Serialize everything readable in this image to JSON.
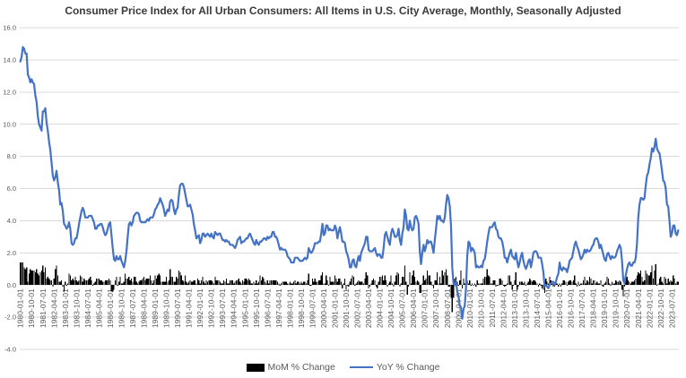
{
  "chart_data": {
    "type": "combo",
    "title": "Consumer Price Index for All Urban Consumers: All Items in U.S. City Average, Monthly, Seasonally Adjusted",
    "x_start": "1980-01",
    "x_end": "2023-12",
    "x_tick_every": 9,
    "x_tick_labels": [
      "1980-01-01",
      "1980-10-01",
      "1981-07-01",
      "1982-04-01",
      "1983-01-01",
      "1983-10-01",
      "1984-07-01",
      "1985-04-01",
      "1986-01-01",
      "1986-10-01",
      "1987-07-01",
      "1988-04-01",
      "1989-01-01",
      "1989-10-01",
      "1990-07-01",
      "1991-04-01",
      "1992-01-01",
      "1992-10-01",
      "1993-07-01",
      "1994-04-01",
      "1995-01-01",
      "1995-10-01",
      "1996-07-01",
      "1997-04-01",
      "1998-01-01",
      "1998-10-01",
      "1999-07-01",
      "2000-04-01",
      "2001-01-01",
      "2001-10-01",
      "2002-07-01",
      "2003-04-01",
      "2004-01-01",
      "2004-10-01",
      "2005-07-01",
      "2006-04-01",
      "2007-01-01",
      "2007-10-01",
      "2008-07-01",
      "2009-04-01",
      "2010-01-01",
      "2010-10-01",
      "2011-07-01",
      "2012-04-01",
      "2013-01-01",
      "2013-10-01",
      "2014-07-01",
      "2015-04-01",
      "2016-01-01",
      "2016-10-01",
      "2017-07-01",
      "2018-04-01",
      "2019-01-01",
      "2019-10-01",
      "2020-07-01",
      "2021-04-01",
      "2022-01-01",
      "2022-10-01",
      "2023-07-01"
    ],
    "y_tick_values": [
      16,
      14,
      12,
      10,
      8,
      6,
      4,
      2,
      0,
      -2,
      -4
    ],
    "y_tick_labels": [
      "16.0",
      "14.0",
      "12.0",
      "10.0",
      "8.0",
      "6.0",
      "4.0",
      "2.0",
      "0.0",
      "-2.0",
      "-4.0"
    ],
    "ylim": [
      -4,
      16
    ],
    "grid": true,
    "legend_position": "bottom",
    "colors": {
      "grid": "#D9D9D9",
      "axis_text": "#595959",
      "title_text": "#3A3A3A",
      "background": "#FFFFFF"
    },
    "series": [
      {
        "name": "MoM % Change",
        "type": "bar",
        "color": "#000000",
        "values": [
          1.4,
          1.4,
          1.4,
          1.1,
          1.0,
          1.1,
          0.2,
          0.7,
          1.0,
          0.9,
          0.9,
          0.9,
          0.8,
          1.0,
          0.7,
          0.6,
          0.8,
          0.9,
          1.2,
          0.8,
          1.1,
          0.4,
          0.5,
          0.4,
          0.3,
          0.3,
          -0.1,
          0.4,
          1.0,
          1.2,
          0.6,
          0.2,
          0.2,
          0.3,
          -0.1,
          -0.4,
          0.2,
          0.0,
          0.1,
          0.7,
          0.6,
          0.3,
          0.4,
          0.3,
          0.5,
          0.3,
          0.2,
          0.3,
          0.6,
          0.5,
          0.2,
          0.4,
          0.3,
          0.3,
          0.3,
          0.4,
          0.5,
          0.3,
          0.0,
          0.1,
          0.2,
          0.4,
          0.4,
          0.4,
          0.3,
          0.3,
          0.2,
          0.2,
          0.3,
          0.3,
          0.3,
          0.4,
          0.3,
          -0.4,
          -0.4,
          -0.3,
          0.3,
          0.5,
          0.0,
          0.2,
          0.5,
          0.1,
          0.1,
          0.2,
          0.7,
          0.4,
          0.4,
          0.5,
          0.3,
          0.4,
          0.2,
          0.5,
          0.5,
          0.2,
          0.1,
          0.2,
          0.3,
          0.3,
          0.4,
          0.5,
          0.3,
          0.4,
          0.4,
          0.4,
          0.6,
          0.3,
          0.1,
          0.3,
          0.6,
          0.4,
          0.6,
          0.7,
          0.6,
          0.2,
          0.2,
          0.2,
          0.2,
          0.5,
          0.2,
          0.3,
          1.0,
          0.5,
          0.5,
          0.2,
          0.2,
          0.5,
          0.4,
          0.9,
          0.8,
          0.6,
          0.3,
          0.2,
          0.6,
          0.2,
          0.1,
          0.2,
          0.3,
          0.2,
          0.2,
          0.3,
          0.3,
          0.1,
          0.4,
          0.3,
          0.1,
          0.3,
          0.5,
          0.2,
          0.1,
          0.3,
          0.2,
          0.3,
          0.3,
          0.3,
          0.2,
          0.1,
          0.5,
          0.3,
          0.3,
          0.3,
          0.2,
          0.1,
          0.1,
          0.3,
          0.2,
          0.4,
          0.1,
          0.1,
          0.3,
          0.3,
          0.3,
          0.1,
          0.2,
          0.3,
          0.3,
          0.4,
          0.2,
          0.1,
          0.3,
          0.2,
          0.4,
          0.4,
          0.3,
          0.4,
          0.3,
          0.1,
          0.1,
          0.2,
          0.1,
          0.3,
          0.1,
          0.2,
          0.6,
          0.3,
          0.5,
          0.4,
          0.2,
          0.1,
          0.3,
          0.1,
          0.3,
          0.3,
          0.3,
          0.3,
          0.3,
          0.3,
          0.2,
          0.1,
          0.0,
          0.1,
          0.2,
          0.2,
          0.2,
          0.2,
          0.1,
          0.1,
          0.2,
          0.1,
          0.1,
          0.2,
          0.3,
          0.1,
          0.2,
          0.2,
          0.1,
          0.2,
          0.1,
          0.2,
          0.2,
          0.1,
          0.3,
          0.7,
          0.0,
          0.0,
          0.4,
          0.2,
          0.4,
          0.2,
          0.2,
          0.3,
          0.3,
          0.6,
          0.8,
          0.1,
          0.1,
          0.6,
          0.3,
          0.0,
          0.5,
          0.2,
          0.2,
          0.2,
          0.6,
          0.4,
          0.2,
          0.4,
          0.4,
          0.2,
          -0.2,
          0.1,
          0.4,
          -0.3,
          0.0,
          -0.1,
          0.2,
          0.4,
          0.6,
          0.5,
          0.0,
          0.1,
          0.2,
          0.3,
          0.2,
          0.2,
          0.2,
          0.1,
          0.4,
          0.8,
          0.6,
          -0.2,
          -0.1,
          0.1,
          0.3,
          0.4,
          0.3,
          -0.1,
          -0.2,
          0.2,
          0.5,
          0.5,
          0.6,
          0.3,
          0.6,
          0.3,
          -0.1,
          0.1,
          0.2,
          0.6,
          0.1,
          -0.1,
          0.2,
          0.6,
          0.8,
          0.7,
          -0.1,
          0.1,
          0.5,
          0.5,
          1.2,
          0.2,
          -0.6,
          -0.1,
          0.8,
          0.1,
          0.6,
          0.9,
          0.5,
          0.2,
          0.3,
          0.2,
          -0.5,
          -0.5,
          0.1,
          0.6,
          0.3,
          0.4,
          0.9,
          0.6,
          0.6,
          0.2,
          0.0,
          -0.2,
          0.3,
          0.3,
          0.8,
          0.1,
          0.5,
          0.1,
          0.9,
          0.6,
          0.8,
          1.0,
          0.6,
          -0.1,
          -0.1,
          -0.8,
          -1.7,
          -0.8,
          0.4,
          0.5,
          0.2,
          0.0,
          0.3,
          0.9,
          -0.2,
          0.4,
          0.1,
          0.3,
          0.3,
          0.1,
          0.3,
          0.0,
          0.1,
          0.0,
          0.1,
          -0.1,
          0.3,
          0.1,
          0.1,
          0.1,
          0.1,
          0.4,
          0.5,
          0.5,
          1.0,
          0.6,
          0.5,
          0.1,
          0.1,
          0.3,
          0.3,
          -0.1,
          0.0,
          0.0,
          0.4,
          0.4,
          0.3,
          0.0,
          -0.1,
          0.0,
          0.1,
          0.6,
          0.6,
          0.2,
          -0.3,
          0.0,
          0.3,
          0.8,
          -0.3,
          -0.1,
          0.2,
          0.2,
          0.2,
          0.1,
          0.2,
          0.0,
          0.1,
          0.2,
          0.4,
          0.3,
          0.2,
          0.3,
          0.3,
          0.2,
          0.1,
          -0.1,
          0.1,
          0.0,
          -0.2,
          -0.3,
          -0.5,
          0.4,
          0.2,
          0.1,
          0.5,
          0.3,
          0.1,
          -0.1,
          -0.1,
          0.2,
          0.1,
          -0.1,
          0.1,
          -0.1,
          0.1,
          0.3,
          0.3,
          0.2,
          0.0,
          0.2,
          0.3,
          0.3,
          0.2,
          0.3,
          0.6,
          0.1,
          -0.1,
          0.2,
          0.0,
          0.1,
          0.1,
          0.3,
          0.5,
          0.1,
          0.3,
          0.2,
          0.5,
          0.4,
          0.1,
          0.3,
          0.3,
          0.1,
          0.2,
          0.1,
          0.1,
          0.3,
          0.0,
          -0.1,
          0.1,
          0.2,
          0.5,
          0.4,
          0.1,
          0.0,
          0.2,
          0.1,
          0.1,
          0.3,
          0.2,
          0.2,
          0.3,
          0.2,
          -0.3,
          -0.7,
          -0.1,
          0.5,
          0.5,
          0.3,
          0.2,
          0.1,
          0.2,
          0.2,
          0.3,
          0.4,
          0.6,
          0.8,
          0.7,
          0.9,
          0.5,
          0.2,
          0.3,
          0.9,
          0.7,
          0.6,
          0.6,
          0.8,
          1.2,
          0.4,
          0.9,
          1.3,
          0.0,
          0.1,
          0.4,
          0.5,
          0.2,
          0.1,
          0.5,
          0.4,
          0.1,
          0.4,
          0.2,
          0.3,
          0.2,
          0.6,
          0.4,
          0.1,
          0.2,
          0.2
        ]
      },
      {
        "name": "YoY % Change",
        "type": "line",
        "color": "#4472C4",
        "values": [
          13.9,
          14.2,
          14.8,
          14.7,
          14.4,
          14.4,
          13.1,
          12.9,
          12.6,
          12.8,
          12.6,
          12.5,
          11.8,
          11.4,
          10.5,
          10.0,
          9.8,
          9.6,
          10.8,
          10.8,
          11.0,
          10.1,
          9.6,
          8.9,
          8.4,
          7.6,
          6.8,
          6.5,
          6.7,
          7.1,
          6.4,
          5.9,
          5.0,
          5.1,
          4.6,
          3.8,
          3.7,
          3.5,
          3.6,
          3.9,
          3.5,
          2.6,
          2.5,
          2.6,
          2.9,
          2.9,
          3.3,
          3.8,
          4.2,
          4.6,
          4.8,
          4.6,
          4.2,
          4.2,
          4.2,
          4.3,
          4.3,
          4.3,
          4.1,
          3.9,
          3.5,
          3.5,
          3.7,
          3.7,
          3.8,
          3.8,
          3.6,
          3.3,
          3.1,
          3.2,
          3.5,
          3.8,
          3.9,
          3.1,
          2.3,
          1.6,
          1.5,
          1.8,
          1.6,
          1.6,
          1.8,
          1.5,
          1.3,
          1.1,
          1.5,
          2.1,
          3.0,
          3.8,
          3.9,
          3.7,
          3.9,
          4.3,
          4.4,
          4.5,
          4.5,
          4.4,
          4.0,
          3.9,
          3.9,
          3.9,
          3.9,
          4.0,
          4.1,
          4.0,
          4.2,
          4.2,
          4.2,
          4.4,
          4.7,
          4.8,
          5.0,
          5.1,
          5.4,
          5.2,
          5.0,
          4.7,
          4.3,
          4.5,
          4.7,
          4.6,
          5.2,
          5.3,
          5.2,
          4.7,
          4.4,
          4.7,
          4.8,
          5.6,
          6.2,
          6.3,
          6.3,
          6.1,
          5.7,
          5.3,
          4.9,
          4.9,
          5.0,
          4.7,
          4.4,
          3.8,
          3.4,
          2.9,
          3.0,
          3.1,
          2.6,
          2.8,
          3.2,
          3.2,
          3.0,
          3.1,
          3.2,
          3.1,
          3.0,
          3.2,
          3.0,
          2.9,
          3.3,
          3.2,
          3.1,
          3.2,
          3.2,
          3.0,
          2.8,
          2.8,
          2.7,
          2.8,
          2.7,
          2.7,
          2.5,
          2.5,
          2.5,
          2.4,
          2.3,
          2.5,
          2.8,
          2.9,
          3.0,
          2.6,
          2.7,
          2.7,
          2.8,
          2.9,
          2.9,
          3.1,
          3.2,
          3.0,
          2.8,
          2.6,
          2.5,
          2.8,
          2.6,
          2.5,
          2.7,
          2.7,
          2.8,
          2.9,
          2.9,
          2.8,
          3.0,
          2.9,
          3.0,
          3.0,
          3.3,
          3.3,
          3.0,
          3.0,
          2.8,
          2.5,
          2.2,
          2.3,
          2.2,
          2.2,
          2.2,
          2.1,
          1.8,
          1.7,
          1.6,
          1.4,
          1.4,
          1.4,
          1.7,
          1.7,
          1.7,
          1.6,
          1.5,
          1.5,
          1.5,
          1.6,
          1.7,
          1.6,
          1.7,
          2.3,
          2.1,
          2.0,
          2.1,
          2.3,
          2.6,
          2.6,
          2.6,
          2.7,
          2.7,
          3.2,
          3.8,
          3.1,
          3.2,
          3.7,
          3.7,
          3.4,
          3.5,
          3.4,
          3.4,
          3.4,
          3.7,
          3.5,
          2.9,
          3.3,
          3.6,
          3.2,
          2.7,
          2.7,
          2.6,
          2.1,
          1.9,
          1.6,
          1.1,
          1.1,
          1.5,
          1.6,
          1.2,
          1.1,
          1.5,
          1.8,
          1.5,
          2.0,
          2.2,
          2.4,
          2.6,
          3.0,
          3.0,
          2.2,
          2.1,
          2.1,
          2.1,
          2.2,
          2.3,
          2.0,
          1.8,
          1.9,
          1.9,
          1.7,
          1.7,
          2.3,
          3.1,
          3.3,
          3.0,
          2.7,
          2.5,
          3.2,
          3.5,
          3.3,
          3.0,
          3.0,
          3.1,
          3.5,
          2.8,
          2.5,
          3.2,
          3.6,
          4.7,
          4.3,
          3.5,
          3.4,
          4.0,
          3.6,
          3.4,
          3.5,
          4.2,
          4.3,
          4.1,
          3.8,
          2.1,
          1.3,
          2.0,
          2.5,
          2.1,
          2.4,
          2.8,
          2.6,
          2.7,
          2.7,
          2.4,
          2.0,
          2.8,
          3.5,
          4.3,
          4.1,
          4.3,
          4.0,
          4.0,
          3.9,
          4.2,
          5.0,
          5.6,
          5.4,
          4.9,
          3.7,
          1.1,
          0.1,
          0.0,
          0.2,
          -0.4,
          -0.7,
          -1.3,
          -1.4,
          -2.1,
          -1.5,
          -1.3,
          -0.2,
          1.8,
          2.7,
          2.6,
          2.1,
          2.3,
          2.2,
          2.0,
          1.1,
          1.2,
          1.1,
          1.1,
          1.2,
          1.1,
          1.5,
          1.6,
          2.1,
          2.7,
          3.2,
          3.6,
          3.6,
          3.6,
          3.8,
          3.9,
          3.5,
          3.4,
          3.0,
          2.9,
          2.9,
          2.7,
          2.3,
          1.7,
          1.7,
          1.4,
          1.7,
          2.0,
          2.2,
          1.8,
          1.7,
          1.6,
          2.0,
          1.5,
          1.1,
          1.4,
          1.8,
          2.0,
          1.5,
          1.2,
          1.0,
          1.2,
          1.5,
          1.6,
          1.1,
          1.5,
          2.0,
          2.1,
          2.1,
          2.0,
          1.7,
          1.7,
          1.7,
          1.3,
          0.8,
          -0.1,
          0.0,
          -0.1,
          -0.2,
          0.0,
          0.1,
          0.2,
          0.2,
          0.0,
          0.2,
          0.5,
          0.7,
          1.4,
          1.0,
          0.9,
          1.1,
          1.0,
          1.0,
          0.8,
          1.1,
          1.5,
          1.6,
          1.7,
          2.1,
          2.5,
          2.7,
          2.4,
          2.2,
          1.9,
          1.6,
          1.7,
          1.9,
          2.2,
          2.0,
          2.2,
          2.1,
          2.1,
          2.2,
          2.4,
          2.5,
          2.8,
          2.9,
          2.9,
          2.7,
          2.3,
          2.5,
          2.2,
          1.9,
          1.6,
          1.5,
          1.9,
          2.0,
          1.8,
          1.6,
          1.8,
          1.7,
          1.7,
          1.8,
          2.1,
          2.3,
          2.5,
          2.3,
          1.5,
          0.3,
          0.1,
          0.6,
          1.0,
          1.3,
          1.4,
          1.2,
          1.2,
          1.4,
          1.4,
          1.7,
          2.6,
          4.2,
          5.0,
          5.4,
          5.4,
          5.3,
          5.4,
          6.2,
          6.8,
          7.0,
          7.5,
          7.9,
          8.5,
          8.3,
          8.6,
          9.1,
          8.5,
          8.3,
          8.2,
          7.7,
          7.1,
          6.5,
          6.4,
          6.0,
          5.0,
          4.9,
          4.0,
          3.0,
          3.2,
          3.7,
          3.7,
          3.2,
          3.1,
          3.4
        ]
      }
    ]
  }
}
